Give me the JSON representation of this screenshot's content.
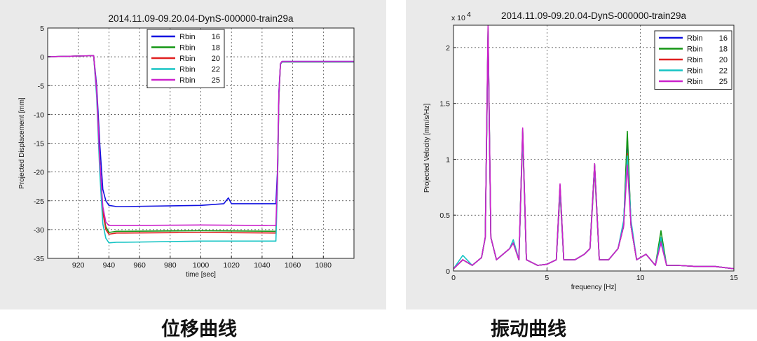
{
  "captions": {
    "left": "位移曲线",
    "right": "振动曲线"
  },
  "chart_data": [
    {
      "type": "line",
      "title": "2014.11.09-09.20.04-DynS-000000-train29a",
      "xlabel": "time [sec]",
      "ylabel": "Projected Displacement [mm]",
      "xlim": [
        900,
        1100
      ],
      "ylim": [
        -35,
        5
      ],
      "xticks": [
        920,
        940,
        960,
        980,
        1000,
        1020,
        1040,
        1060,
        1080
      ],
      "yticks": [
        5,
        0,
        -5,
        -10,
        -15,
        -20,
        -25,
        -30,
        -35
      ],
      "grid": true,
      "legend_position": "top-center",
      "legend_word": "Rbin",
      "series": [
        {
          "name": "16",
          "color": "#1010e0",
          "x": [
            900,
            930,
            932,
            934,
            936,
            938,
            940,
            945,
            950,
            1000,
            1015,
            1018,
            1020,
            1049,
            1050,
            1051,
            1052,
            1053,
            1060,
            1100
          ],
          "y": [
            0,
            0.2,
            -5,
            -15,
            -23,
            -25,
            -25.8,
            -26,
            -26,
            -25.8,
            -25.5,
            -24.5,
            -25.5,
            -25.5,
            -20,
            -6,
            -1.2,
            -0.8,
            -0.8,
            -0.8
          ]
        },
        {
          "name": "18",
          "color": "#149614",
          "x": [
            900,
            930,
            932,
            934,
            936,
            938,
            940,
            945,
            950,
            1000,
            1049,
            1050,
            1051,
            1052,
            1053,
            1060,
            1100
          ],
          "y": [
            0,
            0.2,
            -6,
            -18,
            -27,
            -29.5,
            -30.5,
            -30.3,
            -30.3,
            -30.2,
            -30.3,
            -22,
            -7,
            -1.3,
            -0.9,
            -0.9,
            -0.9
          ]
        },
        {
          "name": "20",
          "color": "#e02020",
          "x": [
            900,
            930,
            932,
            934,
            936,
            938,
            940,
            945,
            950,
            1000,
            1049,
            1050,
            1051,
            1052,
            1053,
            1060,
            1100
          ],
          "y": [
            0,
            0.2,
            -6,
            -18,
            -27,
            -30,
            -30.8,
            -30.6,
            -30.6,
            -30.5,
            -30.6,
            -22,
            -7,
            -1.3,
            -0.9,
            -0.9,
            -0.9
          ]
        },
        {
          "name": "22",
          "color": "#16c4c4",
          "x": [
            900,
            930,
            932,
            934,
            936,
            938,
            940,
            945,
            950,
            1000,
            1049,
            1050,
            1051,
            1052,
            1053,
            1060,
            1100
          ],
          "y": [
            0,
            0.2,
            -7,
            -20,
            -29,
            -31.5,
            -32.3,
            -32.2,
            -32.2,
            -32,
            -32,
            -23,
            -7,
            -1.3,
            -0.9,
            -0.9,
            -0.9
          ]
        },
        {
          "name": "25",
          "color": "#cc22cc",
          "x": [
            900,
            930,
            932,
            934,
            936,
            938,
            940,
            945,
            950,
            1000,
            1049,
            1050,
            1051,
            1052,
            1053,
            1060,
            1100
          ],
          "y": [
            0,
            0.2,
            -6,
            -18,
            -26,
            -28.7,
            -29.3,
            -29.3,
            -29.3,
            -29.2,
            -29.3,
            -21,
            -6.5,
            -1.2,
            -0.8,
            -0.8,
            -0.8
          ]
        }
      ]
    },
    {
      "type": "line",
      "title": "2014.11.09-09.20.04-DynS-000000-train29a",
      "xlabel": "frequency [Hz]",
      "ylabel": "Projected Velocity [mm/s/Hz]",
      "y_exponent": "x 10",
      "y_exponent_power": "4",
      "xlim": [
        0,
        15
      ],
      "ylim": [
        0,
        2.2
      ],
      "xticks": [
        0,
        5,
        10,
        15
      ],
      "yticks": [
        0,
        0.5,
        1,
        1.5,
        2
      ],
      "grid": true,
      "legend_position": "top-right",
      "legend_word": "Rbin",
      "series": [
        {
          "name": "16",
          "color": "#1010e0",
          "x": [
            0,
            0.5,
            1.0,
            1.5,
            1.7,
            1.85,
            2.0,
            2.3,
            3.0,
            3.2,
            3.5,
            3.7,
            3.9,
            4.5,
            5.0,
            5.5,
            5.7,
            5.9,
            6.5,
            7.0,
            7.3,
            7.55,
            7.8,
            8.3,
            8.8,
            9.1,
            9.3,
            9.5,
            9.8,
            10.3,
            10.8,
            11.1,
            11.4,
            12.0,
            13.0,
            14.0,
            15.0
          ],
          "y": [
            0.02,
            0.1,
            0.05,
            0.12,
            0.3,
            2.15,
            0.3,
            0.1,
            0.2,
            0.25,
            0.1,
            1.25,
            0.1,
            0.05,
            0.06,
            0.1,
            0.75,
            0.1,
            0.1,
            0.15,
            0.2,
            0.95,
            0.1,
            0.1,
            0.2,
            0.4,
            1.2,
            0.4,
            0.1,
            0.15,
            0.05,
            0.3,
            0.05,
            0.05,
            0.04,
            0.04,
            0.02
          ]
        },
        {
          "name": "18",
          "color": "#149614",
          "x": [
            0,
            0.5,
            1.0,
            1.5,
            1.7,
            1.85,
            2.0,
            2.3,
            3.0,
            3.2,
            3.5,
            3.7,
            3.9,
            4.5,
            5.0,
            5.5,
            5.7,
            5.9,
            6.5,
            7.0,
            7.3,
            7.55,
            7.8,
            8.3,
            8.8,
            9.1,
            9.3,
            9.5,
            9.8,
            10.3,
            10.8,
            11.1,
            11.4,
            12.0,
            13.0,
            14.0,
            15.0
          ],
          "y": [
            0.02,
            0.1,
            0.05,
            0.12,
            0.3,
            2.18,
            0.3,
            0.1,
            0.2,
            0.25,
            0.1,
            1.27,
            0.1,
            0.05,
            0.06,
            0.1,
            0.77,
            0.1,
            0.1,
            0.15,
            0.2,
            0.96,
            0.1,
            0.1,
            0.2,
            0.4,
            1.25,
            0.4,
            0.1,
            0.15,
            0.05,
            0.36,
            0.05,
            0.05,
            0.04,
            0.04,
            0.02
          ]
        },
        {
          "name": "20",
          "color": "#e02020",
          "x": [
            0,
            0.5,
            1.0,
            1.5,
            1.7,
            1.85,
            2.0,
            2.3,
            3.0,
            3.2,
            3.5,
            3.7,
            3.9,
            4.5,
            5.0,
            5.5,
            5.7,
            5.9,
            6.5,
            7.0,
            7.3,
            7.55,
            7.8,
            8.3,
            8.8,
            9.1,
            9.3,
            9.5,
            9.8,
            10.3,
            10.8,
            11.1,
            11.4,
            12.0,
            13.0,
            14.0,
            15.0
          ],
          "y": [
            0.02,
            0.1,
            0.05,
            0.12,
            0.3,
            2.1,
            0.3,
            0.1,
            0.2,
            0.25,
            0.1,
            1.2,
            0.1,
            0.05,
            0.06,
            0.1,
            0.7,
            0.1,
            0.1,
            0.15,
            0.2,
            0.9,
            0.1,
            0.1,
            0.2,
            0.4,
            1.05,
            0.4,
            0.1,
            0.15,
            0.05,
            0.28,
            0.05,
            0.05,
            0.04,
            0.04,
            0.02
          ]
        },
        {
          "name": "22",
          "color": "#16c4c4",
          "x": [
            0,
            0.5,
            1.0,
            1.5,
            1.7,
            1.85,
            2.0,
            2.3,
            3.0,
            3.2,
            3.5,
            3.7,
            3.9,
            4.5,
            5.0,
            5.5,
            5.7,
            5.9,
            6.5,
            7.0,
            7.3,
            7.55,
            7.8,
            8.3,
            8.8,
            9.1,
            9.3,
            9.5,
            9.8,
            10.3,
            10.8,
            11.1,
            11.4,
            12.0,
            13.0,
            14.0,
            15.0
          ],
          "y": [
            0.02,
            0.14,
            0.05,
            0.12,
            0.3,
            2.12,
            0.3,
            0.1,
            0.2,
            0.28,
            0.1,
            1.22,
            0.1,
            0.05,
            0.06,
            0.1,
            0.72,
            0.1,
            0.1,
            0.15,
            0.2,
            0.92,
            0.1,
            0.1,
            0.2,
            0.45,
            1.03,
            0.45,
            0.1,
            0.15,
            0.05,
            0.3,
            0.05,
            0.05,
            0.04,
            0.04,
            0.02
          ]
        },
        {
          "name": "25",
          "color": "#cc22cc",
          "x": [
            0,
            0.5,
            1.0,
            1.5,
            1.7,
            1.85,
            2.0,
            2.3,
            3.0,
            3.2,
            3.5,
            3.7,
            3.9,
            4.5,
            5.0,
            5.5,
            5.7,
            5.9,
            6.5,
            7.0,
            7.3,
            7.55,
            7.8,
            8.3,
            8.8,
            9.1,
            9.3,
            9.5,
            9.8,
            10.3,
            10.8,
            11.1,
            11.4,
            12.0,
            13.0,
            14.0,
            15.0
          ],
          "y": [
            0.02,
            0.1,
            0.05,
            0.12,
            0.3,
            2.2,
            0.3,
            0.1,
            0.2,
            0.25,
            0.1,
            1.28,
            0.1,
            0.05,
            0.06,
            0.1,
            0.78,
            0.1,
            0.1,
            0.15,
            0.2,
            0.96,
            0.1,
            0.1,
            0.2,
            0.4,
            0.95,
            0.4,
            0.1,
            0.15,
            0.05,
            0.25,
            0.05,
            0.05,
            0.04,
            0.04,
            0.02
          ]
        }
      ]
    }
  ]
}
